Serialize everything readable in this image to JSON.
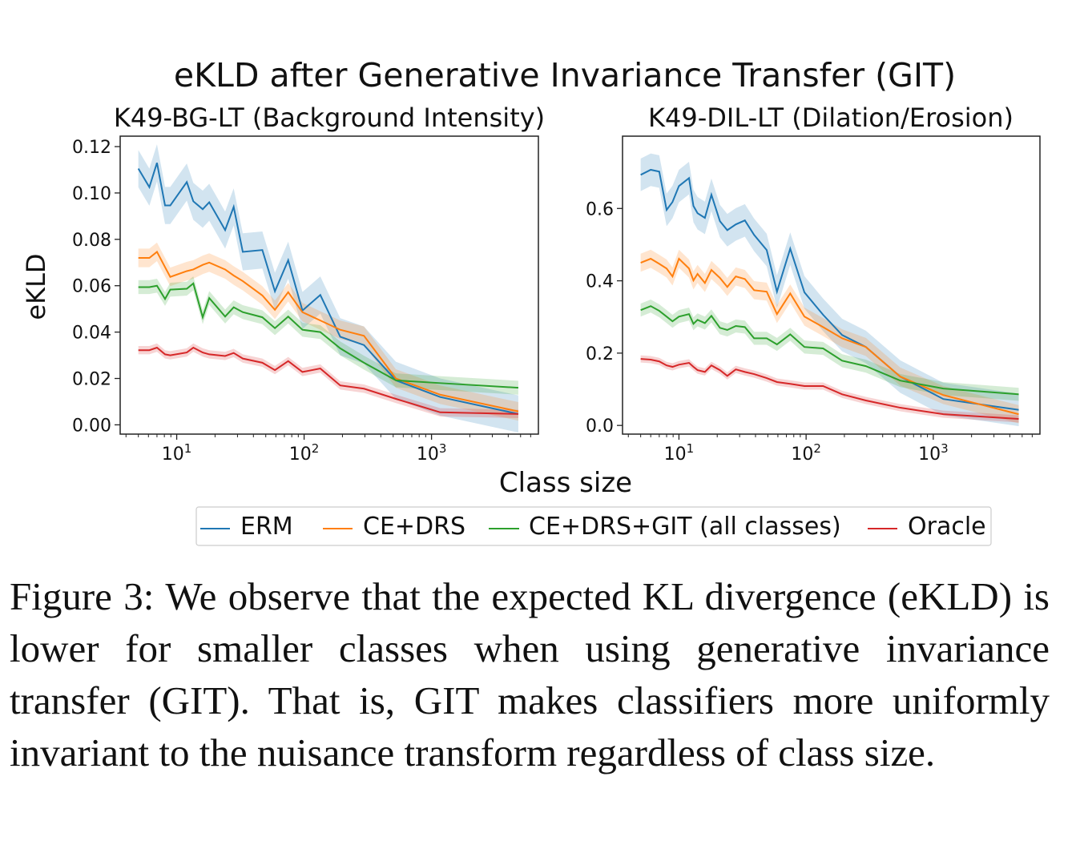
{
  "figure": {
    "suptitle": "eKLD after Generative Invariance Transfer (GIT)",
    "shared_xlabel": "Class size",
    "shared_ylabel": "eKLD",
    "legend": [
      {
        "name": "ERM",
        "color": "#1f77b4"
      },
      {
        "name": "CE+DRS",
        "color": "#ff7f0e"
      },
      {
        "name": "CE+DRS+GIT (all classes)",
        "color": "#2ca02c"
      },
      {
        "name": "Oracle",
        "color": "#d62728"
      }
    ],
    "legend_placement": "bottom-center"
  },
  "caption": {
    "label": "Figure 3:",
    "text": "We observe that the expected KL divergence (eKLD) is lower for smaller classes when using generative invariance transfer (GIT). That is, GIT makes classifiers more uniformly invariant to the nuisance transform regardless of class size."
  },
  "chart_data": [
    {
      "type": "line",
      "title": "K49-BG-LT (Background Intensity)",
      "xscale": "log",
      "xlim": [
        3.6,
        6900
      ],
      "ylim": [
        -0.004,
        0.1245
      ],
      "xticks": [
        10,
        100,
        1000
      ],
      "xtick_labels": [
        "10^1",
        "10^2",
        "10^3"
      ],
      "yticks": [
        0,
        0.02,
        0.04,
        0.06,
        0.08,
        0.1,
        0.12
      ],
      "ytick_labels": [
        "0.00",
        "0.02",
        "0.04",
        "0.06",
        "0.08",
        "0.10",
        "0.12"
      ],
      "grid": false,
      "x": [
        5,
        6.1,
        7,
        8.1,
        8.9,
        12,
        13.5,
        16,
        18,
        24,
        28,
        33,
        47,
        59,
        75,
        97,
        134,
        192,
        295,
        525,
        1170,
        4800
      ],
      "series": [
        {
          "name": "ERM",
          "ci": 0.008,
          "values": [
            0.1105,
            0.1025,
            0.113,
            0.0946,
            0.0946,
            0.1047,
            0.0964,
            0.093,
            0.096,
            0.084,
            0.094,
            0.0746,
            0.0754,
            0.0576,
            0.071,
            0.0493,
            0.056,
            0.038,
            0.0344,
            0.0192,
            0.012,
            0.0047
          ]
        },
        {
          "name": "CE+DRS",
          "ci": 0.004,
          "values": [
            0.072,
            0.072,
            0.0746,
            0.068,
            0.0638,
            0.0663,
            0.067,
            0.069,
            0.07,
            0.067,
            0.0644,
            0.062,
            0.0558,
            0.0496,
            0.0572,
            0.0486,
            0.045,
            0.041,
            0.0384,
            0.02,
            0.013,
            0.0058
          ]
        },
        {
          "name": "CE+DRS+GIT (all classes)",
          "ci": 0.003,
          "values": [
            0.0594,
            0.0594,
            0.06,
            0.0543,
            0.0583,
            0.0587,
            0.061,
            0.0464,
            0.0547,
            0.0467,
            0.0507,
            0.0486,
            0.0464,
            0.0417,
            0.0467,
            0.041,
            0.04,
            0.033,
            0.0268,
            0.0192,
            0.018,
            0.016
          ]
        },
        {
          "name": "Oracle",
          "ci": 0.0018,
          "values": [
            0.0322,
            0.0322,
            0.0333,
            0.0304,
            0.03,
            0.0312,
            0.0333,
            0.0312,
            0.0304,
            0.0297,
            0.031,
            0.0286,
            0.0268,
            0.0236,
            0.0275,
            0.0228,
            0.0243,
            0.017,
            0.0156,
            0.0112,
            0.0054,
            0.0047
          ]
        }
      ]
    },
    {
      "type": "line",
      "title": "K49-DIL-LT (Dilation/Erosion)",
      "xscale": "log",
      "xlim": [
        3.6,
        6900
      ],
      "ylim": [
        -0.024,
        0.8
      ],
      "xticks": [
        10,
        100,
        1000
      ],
      "xtick_labels": [
        "10^1",
        "10^2",
        "10^3"
      ],
      "yticks": [
        0,
        0.2,
        0.4,
        0.6
      ],
      "ytick_labels": [
        "0.0",
        "0.2",
        "0.4",
        "0.6"
      ],
      "grid": false,
      "x": [
        5,
        6,
        7,
        8,
        8.9,
        10,
        12,
        13,
        14,
        16,
        18,
        21,
        24,
        28,
        33,
        39,
        49,
        59,
        75,
        97,
        136,
        192,
        295,
        550,
        1200,
        4700
      ],
      "series": [
        {
          "name": "ERM",
          "ci": 0.045,
          "values": [
            0.693,
            0.707,
            0.702,
            0.596,
            0.618,
            0.662,
            0.684,
            0.607,
            0.587,
            0.574,
            0.638,
            0.565,
            0.54,
            0.556,
            0.567,
            0.527,
            0.485,
            0.37,
            0.489,
            0.368,
            0.306,
            0.25,
            0.217,
            0.135,
            0.073,
            0.043
          ]
        },
        {
          "name": "CE+DRS",
          "ci": 0.025,
          "values": [
            0.45,
            0.461,
            0.447,
            0.434,
            0.412,
            0.461,
            0.434,
            0.401,
            0.419,
            0.394,
            0.43,
            0.408,
            0.383,
            0.412,
            0.405,
            0.374,
            0.37,
            0.308,
            0.365,
            0.301,
            0.272,
            0.241,
            0.217,
            0.135,
            0.084,
            0.031
          ]
        },
        {
          "name": "CE+DRS+GIT (all classes)",
          "ci": 0.018,
          "values": [
            0.319,
            0.33,
            0.317,
            0.301,
            0.288,
            0.301,
            0.308,
            0.281,
            0.292,
            0.283,
            0.303,
            0.27,
            0.264,
            0.275,
            0.272,
            0.241,
            0.241,
            0.224,
            0.252,
            0.217,
            0.213,
            0.179,
            0.164,
            0.124,
            0.102,
            0.086
          ]
        },
        {
          "name": "Oracle",
          "ci": 0.01,
          "values": [
            0.184,
            0.182,
            0.177,
            0.166,
            0.162,
            0.168,
            0.173,
            0.162,
            0.153,
            0.148,
            0.166,
            0.153,
            0.137,
            0.155,
            0.148,
            0.142,
            0.131,
            0.12,
            0.115,
            0.109,
            0.109,
            0.086,
            0.069,
            0.049,
            0.031,
            0.018
          ]
        }
      ]
    }
  ]
}
